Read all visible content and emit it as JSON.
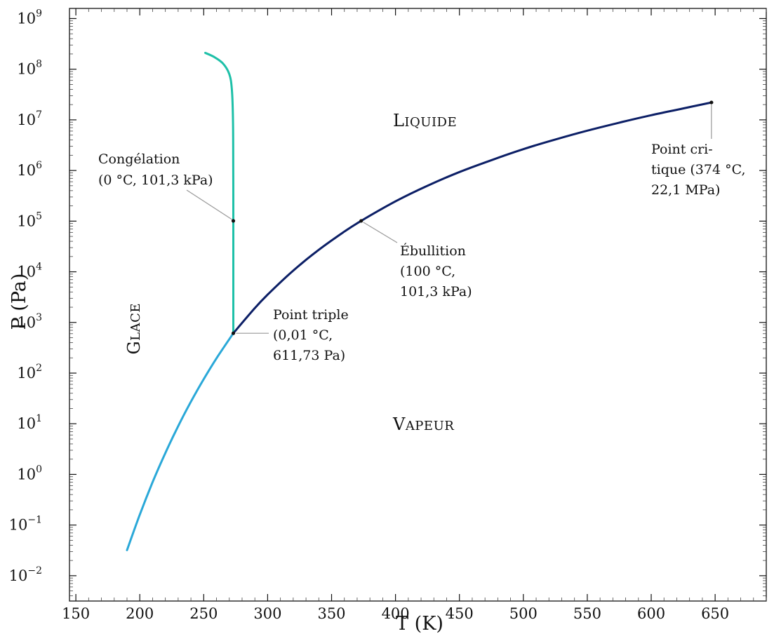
{
  "chart_data": {
    "type": "line",
    "xlabel": "T (K)",
    "ylabel": "P (Pa)",
    "xlim": [
      145,
      690
    ],
    "ylim_log10": [
      -2.5,
      9.2
    ],
    "y_scale": "log",
    "grid": false,
    "x_ticks": [
      "150",
      "200",
      "250",
      "300",
      "350",
      "400",
      "450",
      "500",
      "550",
      "600",
      "650"
    ],
    "y_ticks": [
      {
        "base": "10",
        "exp": "9",
        "log": 9
      },
      {
        "base": "10",
        "exp": "8",
        "log": 8
      },
      {
        "base": "10",
        "exp": "7",
        "log": 7
      },
      {
        "base": "10",
        "exp": "6",
        "log": 6
      },
      {
        "base": "10",
        "exp": "5",
        "log": 5
      },
      {
        "base": "10",
        "exp": "4",
        "log": 4
      },
      {
        "base": "10",
        "exp": "3",
        "log": 3
      },
      {
        "base": "10",
        "exp": "2",
        "log": 2
      },
      {
        "base": "10",
        "exp": "1",
        "log": 1
      },
      {
        "base": "10",
        "exp": "0",
        "log": 0
      },
      {
        "base": "10",
        "exp": "−1",
        "log": -1
      },
      {
        "base": "10",
        "exp": "−2",
        "log": -2
      }
    ],
    "series": [
      {
        "color": "#2aa8d8",
        "points": [
          [
            190,
            0.032
          ],
          [
            200,
            0.16
          ],
          [
            210,
            0.7
          ],
          [
            220,
            2.65
          ],
          [
            230,
            8.94
          ],
          [
            240,
            27.3
          ],
          [
            250,
            76.0
          ],
          [
            260,
            195.8
          ],
          [
            273.16,
            611.73
          ]
        ]
      },
      {
        "color": "#1ec0a8",
        "points": [
          [
            273.16,
            611.73
          ],
          [
            273.15,
            101325
          ],
          [
            273.1,
            1000000
          ],
          [
            272.9,
            10000000
          ],
          [
            272,
            40000000
          ],
          [
            270,
            80000000
          ],
          [
            265,
            130000000
          ],
          [
            258,
            175000000
          ],
          [
            251.2,
            209900000
          ]
        ]
      },
      {
        "color": "#0c1f66",
        "points": [
          [
            273.16,
            611.73
          ],
          [
            290,
            1920
          ],
          [
            300,
            3540
          ],
          [
            320,
            10550
          ],
          [
            340,
            27200
          ],
          [
            360,
            62200
          ],
          [
            373.15,
            101325
          ],
          [
            400,
            245800
          ],
          [
            425,
            500000
          ],
          [
            450,
            932000
          ],
          [
            475,
            1600000
          ],
          [
            500,
            2640000
          ],
          [
            525,
            4100000
          ],
          [
            550,
            6120000
          ],
          [
            575,
            8800000
          ],
          [
            600,
            12350000
          ],
          [
            625,
            16800000
          ],
          [
            647.1,
            22064000
          ]
        ]
      }
    ],
    "points": [
      {
        "name": "Congélation",
        "x": 273.15,
        "y": 101325
      },
      {
        "name": "Ébullition",
        "x": 373.15,
        "y": 101325
      },
      {
        "name": "Point triple",
        "x": 273.16,
        "y": 611.73
      },
      {
        "name": "Point critique",
        "x": 647.1,
        "y": 22064000
      }
    ],
    "regions": [
      {
        "name": "liquide",
        "cap": "L",
        "rest": "IQUIDE",
        "x": 398,
        "y": 10000000
      },
      {
        "name": "glace",
        "cap": "G",
        "rest": "LACE",
        "x": 200,
        "y": 1000
      },
      {
        "name": "vapeur",
        "cap": "V",
        "rest": "APEUR",
        "x": 398,
        "y": 10
      }
    ],
    "annotations": {
      "congelation": [
        "Congélation",
        "(0 °C, 101,3 kPa)"
      ],
      "ebullition": [
        "Ébullition",
        "(100 °C,",
        "101,3 kPa)"
      ],
      "triple": [
        "Point triple",
        "(0,01 °C,",
        "611,73 Pa)"
      ],
      "critique": [
        "Point cri-",
        "tique (374 °C,",
        "22,1 MPa)"
      ]
    }
  }
}
